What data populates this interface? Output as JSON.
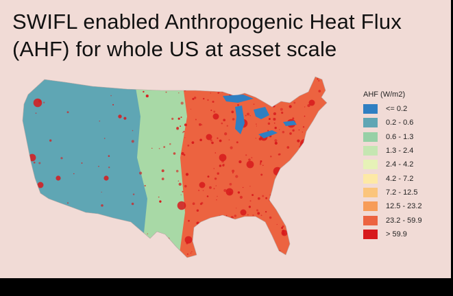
{
  "slide": {
    "title": "SWIFL enabled Anthropogenic Heat Flux (AHF) for whole US at asset scale"
  },
  "legend": {
    "title": "AHF (W/m2)",
    "items": [
      {
        "label": "<= 0.2",
        "color": "#2f7fc2"
      },
      {
        "label": "0.2 - 0.6",
        "color": "#5fa6b4"
      },
      {
        "label": "0.6 - 1.3",
        "color": "#96d0a6"
      },
      {
        "label": "1.3 - 2.4",
        "color": "#c5e6b2"
      },
      {
        "label": "2.4 - 4.2",
        "color": "#e6f2b7"
      },
      {
        "label": "4.2 - 7.2",
        "color": "#fde9a6"
      },
      {
        "label": "7.2 - 12.5",
        "color": "#fbc57c"
      },
      {
        "label": "12.5 - 23.2",
        "color": "#f79c58"
      },
      {
        "label": "23.2 - 59.9",
        "color": "#ec6340"
      },
      {
        "label": "> 59.9",
        "color": "#d7191c"
      }
    ]
  },
  "map": {
    "water_color": "#2f7fc2",
    "west_color": "#5fa6b4",
    "plains_color": "#a8d9a6",
    "east_color": "#ec6340",
    "urban_color": "#d7191c"
  }
}
